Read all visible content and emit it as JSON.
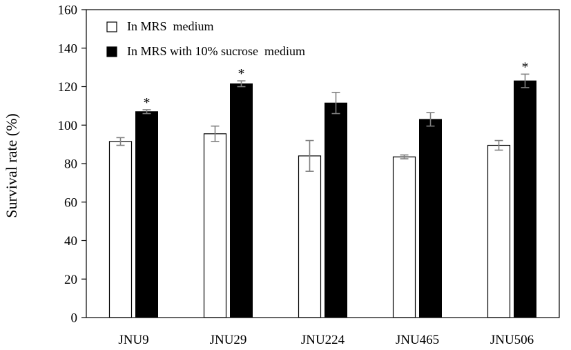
{
  "chart_data": {
    "type": "bar",
    "title": "",
    "xlabel": "",
    "ylabel": "Survival rate (%)",
    "ylim": [
      0,
      160
    ],
    "yticks": [
      0,
      20,
      40,
      60,
      80,
      100,
      120,
      140,
      160
    ],
    "grid": false,
    "legend_position": "top-left",
    "categories": [
      "JNU9",
      "JNU29",
      "JNU224",
      "JNU465",
      "JNU506"
    ],
    "series": [
      {
        "name": "In MRS  medium",
        "color": "#ffffff",
        "values": [
          91.5,
          95.5,
          84.0,
          83.5,
          89.5
        ],
        "errors": [
          2.0,
          4.0,
          8.0,
          1.0,
          2.5
        ],
        "annotations": [
          "",
          "",
          "",
          "",
          ""
        ]
      },
      {
        "name": "In MRS with 10% sucrose  medium",
        "color": "#000000",
        "values": [
          107.0,
          121.5,
          111.5,
          103.0,
          123.0
        ],
        "errors": [
          1.0,
          1.5,
          5.5,
          3.5,
          3.5
        ],
        "annotations": [
          "*",
          "*",
          "",
          "",
          "*"
        ]
      }
    ]
  }
}
